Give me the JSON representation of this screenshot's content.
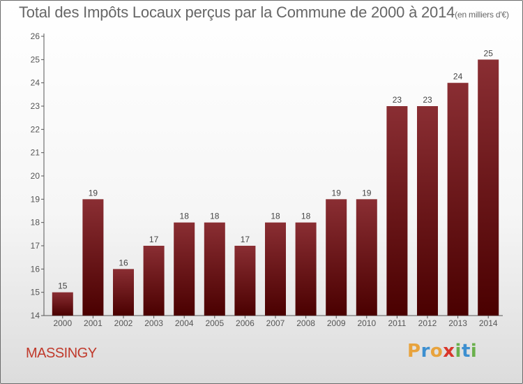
{
  "chart_data": {
    "type": "bar",
    "title": "Total des Impôts Locaux perçus par la Commune de 2000 à 2014",
    "unit_note": "(en milliers d'€)",
    "categories": [
      "2000",
      "2001",
      "2002",
      "2003",
      "2004",
      "2005",
      "2006",
      "2007",
      "2008",
      "2009",
      "2010",
      "2011",
      "2012",
      "2013",
      "2014"
    ],
    "values": [
      15,
      19,
      16,
      17,
      18,
      18,
      17,
      18,
      18,
      19,
      19,
      23,
      23,
      24,
      25
    ],
    "ylim": [
      14,
      26
    ],
    "yticks": [
      14,
      15,
      16,
      17,
      18,
      19,
      20,
      21,
      22,
      23,
      24,
      25,
      26
    ],
    "grid": false,
    "bar_color_top": "#8a2e33",
    "bar_color_bottom": "#4a0000"
  },
  "commune": "MASSINGY",
  "brand": {
    "letters": [
      "P",
      "r",
      "o",
      "x",
      "i",
      "t",
      "i"
    ],
    "colors": [
      "#e8a33d",
      "#3c8fd0",
      "#e8a33d",
      "#d9362b",
      "#6ab04c",
      "#3c8fd0",
      "#6ab04c"
    ]
  }
}
